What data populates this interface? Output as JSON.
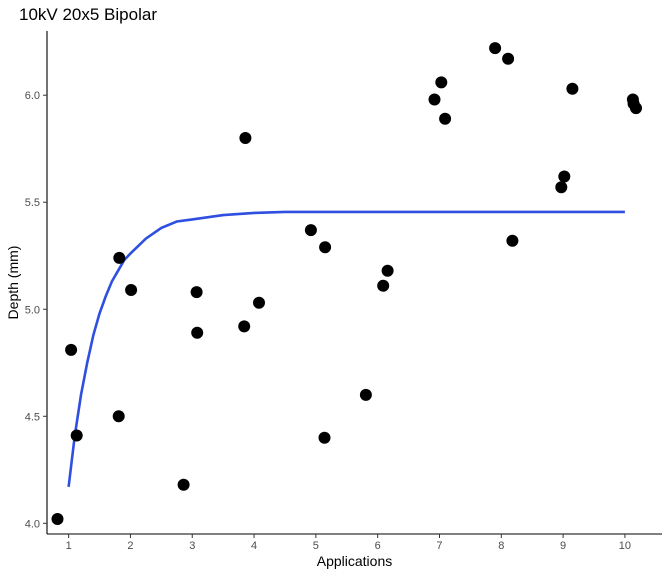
{
  "chart_data": {
    "type": "scatter",
    "title": "10kV 20x5 Bipolar",
    "xlabel": "Applications",
    "ylabel": "Depth (mm)",
    "xlim": [
      0.65,
      10.6
    ],
    "ylim": [
      3.95,
      6.3
    ],
    "x_ticks": [
      1,
      2,
      3,
      4,
      5,
      6,
      7,
      8,
      9,
      10
    ],
    "x_tick_labels": [
      "1",
      "2",
      "3",
      "4",
      "5",
      "6",
      "7",
      "8",
      "9",
      "10"
    ],
    "y_ticks": [
      4.0,
      4.5,
      5.0,
      5.5,
      6.0
    ],
    "y_tick_labels": [
      "4.0",
      "4.5",
      "5.0",
      "5.5",
      "6.0"
    ],
    "grid": false,
    "legend": "none",
    "point_color": "#000000",
    "fit_color": "#2e4fe0",
    "points": [
      {
        "x": 0.82,
        "y": 4.02
      },
      {
        "x": 1.04,
        "y": 4.81
      },
      {
        "x": 1.13,
        "y": 4.41
      },
      {
        "x": 1.81,
        "y": 4.5
      },
      {
        "x": 1.82,
        "y": 5.24
      },
      {
        "x": 2.01,
        "y": 5.09
      },
      {
        "x": 2.86,
        "y": 4.18
      },
      {
        "x": 3.07,
        "y": 5.08
      },
      {
        "x": 3.08,
        "y": 4.89
      },
      {
        "x": 3.84,
        "y": 4.92
      },
      {
        "x": 3.86,
        "y": 5.8
      },
      {
        "x": 4.08,
        "y": 5.03
      },
      {
        "x": 4.92,
        "y": 5.37
      },
      {
        "x": 5.14,
        "y": 4.4
      },
      {
        "x": 5.15,
        "y": 5.29
      },
      {
        "x": 5.81,
        "y": 4.6
      },
      {
        "x": 6.09,
        "y": 5.11
      },
      {
        "x": 6.16,
        "y": 5.18
      },
      {
        "x": 6.92,
        "y": 5.98
      },
      {
        "x": 7.03,
        "y": 6.06
      },
      {
        "x": 7.09,
        "y": 5.89
      },
      {
        "x": 7.9,
        "y": 6.22
      },
      {
        "x": 8.11,
        "y": 6.17
      },
      {
        "x": 8.18,
        "y": 5.32
      },
      {
        "x": 8.97,
        "y": 5.57
      },
      {
        "x": 9.02,
        "y": 5.62
      },
      {
        "x": 9.15,
        "y": 6.03
      },
      {
        "x": 10.13,
        "y": 5.98
      },
      {
        "x": 10.14,
        "y": 5.96
      },
      {
        "x": 10.18,
        "y": 5.94
      }
    ],
    "fit": {
      "x": [
        1.0,
        1.1,
        1.2,
        1.3,
        1.4,
        1.5,
        1.6,
        1.7,
        1.8,
        1.9,
        2.0,
        2.25,
        2.5,
        2.75,
        3.0,
        3.5,
        4.0,
        4.5,
        5.0,
        5.5,
        6.0,
        7.0,
        8.0,
        9.0,
        10.0
      ],
      "y": [
        4.17,
        4.41,
        4.6,
        4.75,
        4.88,
        4.98,
        5.06,
        5.13,
        5.18,
        5.23,
        5.26,
        5.33,
        5.38,
        5.41,
        5.42,
        5.44,
        5.45,
        5.455,
        5.455,
        5.455,
        5.455,
        5.455,
        5.455,
        5.455,
        5.455
      ]
    }
  }
}
